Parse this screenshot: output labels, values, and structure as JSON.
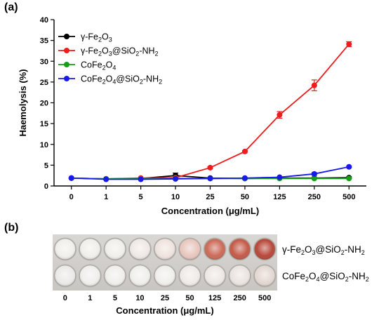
{
  "panels": {
    "a": "(a)",
    "b": "(b)"
  },
  "chart_data": {
    "type": "line",
    "categories": [
      "0",
      "1",
      "5",
      "10",
      "25",
      "50",
      "125",
      "250",
      "500"
    ],
    "ylabel": "Haemolysis (%)",
    "xlabel": "Concentration (μg/mL)",
    "ylim": [
      0,
      40
    ],
    "yticks": [
      0,
      5,
      10,
      15,
      20,
      25,
      30,
      35,
      40
    ],
    "legend_position": "top-left",
    "series": [
      {
        "name": "γ-Fe2O3",
        "legend_parts": [
          [
            "γ-Fe",
            false
          ],
          [
            "2",
            true
          ],
          [
            "O",
            false
          ],
          [
            "3",
            true
          ]
        ],
        "color": "#000000",
        "values": [
          1.9,
          1.7,
          1.8,
          2.5,
          1.9,
          1.8,
          1.9,
          1.9,
          2.0
        ],
        "errors": [
          0.1,
          0.1,
          0.1,
          0.6,
          0.1,
          0.1,
          0.1,
          0.1,
          0.2
        ]
      },
      {
        "name": "γ-Fe2O3@SiO2-NH2",
        "legend_parts": [
          [
            "γ-Fe",
            false
          ],
          [
            "2",
            true
          ],
          [
            "O",
            false
          ],
          [
            "3",
            true
          ],
          [
            "@SiO",
            false
          ],
          [
            "2",
            true
          ],
          [
            "-NH",
            false
          ],
          [
            "2",
            true
          ]
        ],
        "color": "#ee1c1c",
        "values": [
          1.9,
          1.7,
          1.9,
          2.0,
          4.4,
          8.3,
          17.1,
          24.2,
          34.1
        ],
        "errors": [
          0.1,
          0.1,
          0.1,
          0.1,
          0.2,
          0.2,
          0.8,
          1.3,
          0.6
        ]
      },
      {
        "name": "CoFe2O4",
        "legend_parts": [
          [
            "CoFe",
            false
          ],
          [
            "2",
            true
          ],
          [
            "O",
            false
          ],
          [
            "4",
            true
          ]
        ],
        "color": "#15a015",
        "values": [
          1.9,
          1.7,
          1.7,
          1.8,
          1.8,
          1.8,
          1.8,
          1.8,
          1.8
        ],
        "errors": [
          0.1,
          0.1,
          0.1,
          0.1,
          0.1,
          0.1,
          0.1,
          0.1,
          0.1
        ]
      },
      {
        "name": "CoFe2O4@SiO2-NH2",
        "legend_parts": [
          [
            "CoFe",
            false
          ],
          [
            "2",
            true
          ],
          [
            "O",
            false
          ],
          [
            "4",
            true
          ],
          [
            "@SiO",
            false
          ],
          [
            "2",
            true
          ],
          [
            "-NH",
            false
          ],
          [
            "2",
            true
          ]
        ],
        "color": "#1a1ae6",
        "values": [
          1.9,
          1.6,
          1.6,
          1.7,
          1.8,
          1.9,
          2.1,
          2.9,
          4.6
        ],
        "errors": [
          0.1,
          0.1,
          0.1,
          0.1,
          0.1,
          0.1,
          0.1,
          0.3,
          0.2
        ]
      }
    ]
  },
  "plate": {
    "concentrations": [
      "0",
      "1",
      "5",
      "10",
      "25",
      "50",
      "125",
      "250",
      "500"
    ],
    "xlabel": "Concentration (μg/mL)",
    "rows": [
      {
        "label": "γ-Fe2O3@SiO2-NH2",
        "label_parts": [
          [
            "γ-Fe",
            false
          ],
          [
            "2",
            true
          ],
          [
            "O",
            false
          ],
          [
            "3",
            true
          ],
          [
            "@SiO",
            false
          ],
          [
            "2",
            true
          ],
          [
            "-NH",
            false
          ],
          [
            "2",
            true
          ]
        ],
        "tints": [
          "#f1efec",
          "#f1efec",
          "#f1efec",
          "#efe9e6",
          "#efe3de",
          "#e9c7bf",
          "#cc6a58",
          "#c45a48",
          "#b8473a"
        ]
      },
      {
        "label": "CoFe2O4@SiO2-NH2",
        "label_parts": [
          [
            "CoFe",
            false
          ],
          [
            "2",
            true
          ],
          [
            "O",
            false
          ],
          [
            "4",
            true
          ],
          [
            "@SiO",
            false
          ],
          [
            "2",
            true
          ],
          [
            "-NH",
            false
          ],
          [
            "2",
            true
          ]
        ],
        "tints": [
          "#eceae8",
          "#f1efec",
          "#f1efec",
          "#f1efec",
          "#f1efec",
          "#efebe8",
          "#ede8e4",
          "#ebe4e0",
          "#e4d8d2"
        ]
      }
    ]
  }
}
